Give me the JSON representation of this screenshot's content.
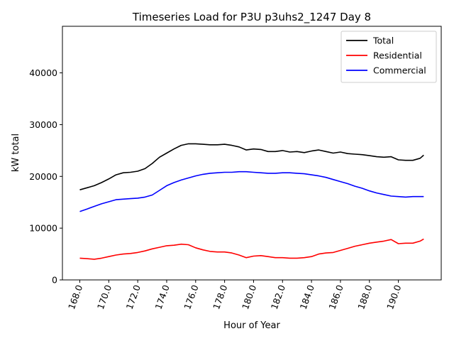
{
  "chart_data": {
    "type": "line",
    "title": "Timeseries Load for P3U p3uhs2_1247  Day 8",
    "xlabel": "Hour of Year",
    "ylabel": "kW total",
    "xlim": [
      166.8,
      192.96
    ],
    "ylim": [
      0,
      49000
    ],
    "xticks": [
      168.0,
      170.0,
      172.0,
      174.0,
      176.0,
      178.0,
      180.0,
      182.0,
      184.0,
      186.0,
      188.0,
      190.0
    ],
    "xtick_labels": [
      "168.0",
      "170.0",
      "172.0",
      "174.0",
      "176.0",
      "178.0",
      "180.0",
      "182.0",
      "184.0",
      "186.0",
      "188.0",
      "190.0"
    ],
    "yticks": [
      0,
      10000,
      20000,
      30000,
      40000
    ],
    "ytick_labels": [
      "0",
      "10000",
      "20000",
      "30000",
      "40000"
    ],
    "grid": false,
    "legend_position": "top-right",
    "series": [
      {
        "name": "Total",
        "color": "#000000",
        "x": [
          168.0,
          168.5,
          169.0,
          169.5,
          170.0,
          170.5,
          171.0,
          171.5,
          172.0,
          172.5,
          173.0,
          173.5,
          174.0,
          174.5,
          175.0,
          175.5,
          176.0,
          176.5,
          177.0,
          177.5,
          178.0,
          178.5,
          179.0,
          179.5,
          180.0,
          180.5,
          181.0,
          181.5,
          182.0,
          182.5,
          183.0,
          183.5,
          184.0,
          184.5,
          185.0,
          185.5,
          186.0,
          186.5,
          187.0,
          187.5,
          188.0,
          188.5,
          189.0,
          189.5,
          190.0,
          190.5,
          191.0,
          191.5,
          191.75
        ],
        "values": [
          17400,
          17800,
          18200,
          18800,
          19500,
          20300,
          20700,
          20800,
          21000,
          21500,
          22500,
          23700,
          24500,
          25300,
          26000,
          26300,
          26300,
          26200,
          26100,
          26100,
          26200,
          26000,
          25700,
          25100,
          25300,
          25200,
          24800,
          24800,
          25000,
          24700,
          24800,
          24600,
          24900,
          25100,
          24800,
          24500,
          24700,
          24400,
          24300,
          24200,
          24000,
          23800,
          23700,
          23800,
          23200,
          23100,
          23100,
          23500,
          24100
        ]
      },
      {
        "name": "Residential",
        "color": "#ff0000",
        "x": [
          168.0,
          168.5,
          169.0,
          169.5,
          170.0,
          170.5,
          171.0,
          171.5,
          172.0,
          172.5,
          173.0,
          173.5,
          174.0,
          174.5,
          175.0,
          175.5,
          176.0,
          176.5,
          177.0,
          177.5,
          178.0,
          178.5,
          179.0,
          179.5,
          180.0,
          180.5,
          181.0,
          181.5,
          182.0,
          182.5,
          183.0,
          183.5,
          184.0,
          184.5,
          185.0,
          185.5,
          186.0,
          186.5,
          187.0,
          187.5,
          188.0,
          188.5,
          189.0,
          189.5,
          190.0,
          190.5,
          191.0,
          191.5,
          191.75
        ],
        "values": [
          4200,
          4100,
          4000,
          4200,
          4500,
          4800,
          5000,
          5100,
          5300,
          5600,
          6000,
          6300,
          6600,
          6700,
          6900,
          6800,
          6200,
          5800,
          5500,
          5400,
          5400,
          5200,
          4800,
          4300,
          4600,
          4700,
          4500,
          4300,
          4300,
          4200,
          4200,
          4300,
          4500,
          5000,
          5200,
          5300,
          5700,
          6100,
          6500,
          6800,
          7100,
          7300,
          7500,
          7800,
          7000,
          7100,
          7100,
          7500,
          7900
        ]
      },
      {
        "name": "Commercial",
        "color": "#0000ff",
        "x": [
          168.0,
          168.5,
          169.0,
          169.5,
          170.0,
          170.5,
          171.0,
          171.5,
          172.0,
          172.5,
          173.0,
          173.5,
          174.0,
          174.5,
          175.0,
          175.5,
          176.0,
          176.5,
          177.0,
          177.5,
          178.0,
          178.5,
          179.0,
          179.5,
          180.0,
          180.5,
          181.0,
          181.5,
          182.0,
          182.5,
          183.0,
          183.5,
          184.0,
          184.5,
          185.0,
          185.5,
          186.0,
          186.5,
          187.0,
          187.5,
          188.0,
          188.5,
          189.0,
          189.5,
          190.0,
          190.5,
          191.0,
          191.5,
          191.75
        ],
        "values": [
          13200,
          13700,
          14200,
          14700,
          15100,
          15500,
          15600,
          15700,
          15800,
          16000,
          16400,
          17300,
          18200,
          18800,
          19300,
          19700,
          20100,
          20400,
          20600,
          20700,
          20800,
          20800,
          20900,
          20900,
          20800,
          20700,
          20600,
          20600,
          20700,
          20700,
          20600,
          20500,
          20300,
          20100,
          19800,
          19400,
          19000,
          18600,
          18100,
          17700,
          17200,
          16800,
          16500,
          16200,
          16100,
          16000,
          16100,
          16100,
          16100
        ]
      }
    ]
  }
}
